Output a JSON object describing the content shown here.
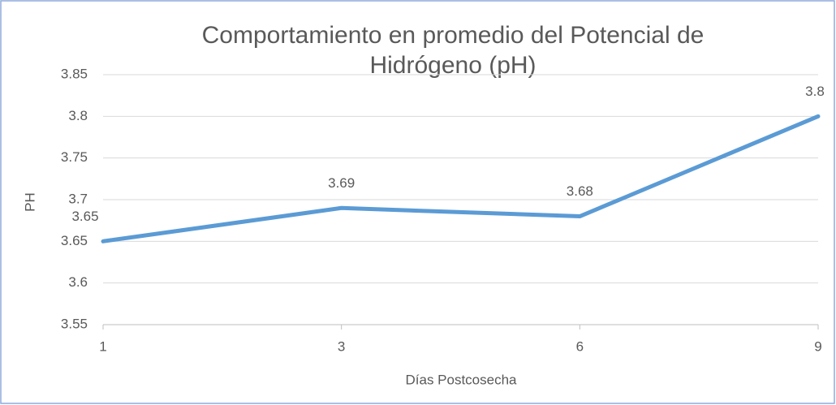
{
  "chart_data": {
    "type": "line",
    "title": [
      "Comportamiento  en promedio del Potencial de",
      "Hidrógeno (pH)"
    ],
    "x_label": "Días Postcosecha",
    "y_label": "PH",
    "categories": [
      "1",
      "3",
      "6",
      "9"
    ],
    "series": [
      {
        "name": "pH",
        "color": "#5b9bd5",
        "values": [
          3.65,
          3.69,
          3.68,
          3.8
        ]
      }
    ],
    "ylim": [
      3.55,
      3.85
    ],
    "yticks": [
      3.55,
      3.6,
      3.65,
      3.7,
      3.75,
      3.8,
      3.85
    ],
    "grid": true
  }
}
